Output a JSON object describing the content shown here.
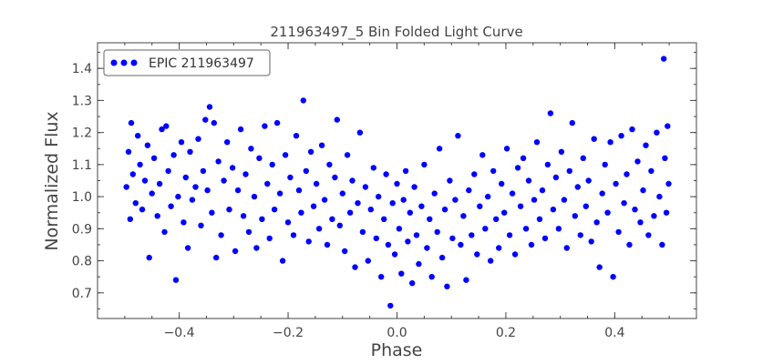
{
  "chart_data": {
    "type": "scatter",
    "title": "211963497_5 Bin Folded Light Curve",
    "xlabel": "Phase",
    "ylabel": "Normalized Flux",
    "xlim": [
      -0.55,
      0.55
    ],
    "ylim": [
      0.62,
      1.48
    ],
    "x_ticks": [
      -0.4,
      -0.2,
      0.0,
      0.2,
      0.4
    ],
    "x_tick_labels": [
      "−0.4",
      "−0.2",
      "0.0",
      "0.2",
      "0.4"
    ],
    "y_ticks": [
      0.7,
      0.8,
      0.9,
      1.0,
      1.1,
      1.2,
      1.3,
      1.4
    ],
    "y_tick_labels": [
      "0.7",
      "0.8",
      "0.9",
      "1.0",
      "1.1",
      "1.2",
      "1.3",
      "1.4"
    ],
    "grid": false,
    "legend": {
      "position": "top-left",
      "entries": [
        "EPIC 211963497"
      ]
    },
    "colors": {
      "series": "#0000ff",
      "axes": "#444444",
      "text": "#444444"
    },
    "series": [
      {
        "name": "EPIC 211963497",
        "marker": "circle",
        "points": [
          [
            -0.497,
            1.03
          ],
          [
            -0.493,
            1.14
          ],
          [
            -0.49,
            0.93
          ],
          [
            -0.488,
            1.23
          ],
          [
            -0.485,
            1.07
          ],
          [
            -0.48,
            0.98
          ],
          [
            -0.476,
            1.19
          ],
          [
            -0.472,
            1.1
          ],
          [
            -0.468,
            0.96
          ],
          [
            -0.463,
            1.05
          ],
          [
            -0.458,
            1.16
          ],
          [
            -0.455,
            0.81
          ],
          [
            -0.45,
            1.01
          ],
          [
            -0.446,
            1.12
          ],
          [
            -0.44,
            0.94
          ],
          [
            -0.436,
            1.04
          ],
          [
            -0.432,
            1.21
          ],
          [
            -0.427,
            0.89
          ],
          [
            -0.424,
            1.22
          ],
          [
            -0.42,
            1.08
          ],
          [
            -0.415,
            0.97
          ],
          [
            -0.41,
            1.13
          ],
          [
            -0.406,
            0.74
          ],
          [
            -0.402,
            1.0
          ],
          [
            -0.396,
            1.17
          ],
          [
            -0.392,
            0.92
          ],
          [
            -0.388,
            1.06
          ],
          [
            -0.384,
            0.84
          ],
          [
            -0.38,
            1.14
          ],
          [
            -0.376,
            0.99
          ],
          [
            -0.37,
            1.03
          ],
          [
            -0.365,
            1.18
          ],
          [
            -0.36,
            0.91
          ],
          [
            -0.356,
            1.08
          ],
          [
            -0.352,
            1.24
          ],
          [
            -0.348,
            1.02
          ],
          [
            -0.344,
            1.28
          ],
          [
            -0.34,
            0.95
          ],
          [
            -0.336,
            1.23
          ],
          [
            -0.332,
            0.81
          ],
          [
            -0.328,
            1.11
          ],
          [
            -0.323,
            0.88
          ],
          [
            -0.318,
            1.05
          ],
          [
            -0.312,
            1.17
          ],
          [
            -0.308,
            0.96
          ],
          [
            -0.302,
            1.09
          ],
          [
            -0.297,
            0.83
          ],
          [
            -0.292,
            1.02
          ],
          [
            -0.287,
            1.21
          ],
          [
            -0.282,
            0.94
          ],
          [
            -0.278,
            1.07
          ],
          [
            -0.272,
            0.89
          ],
          [
            -0.268,
            1.15
          ],
          [
            -0.262,
            1.0
          ],
          [
            -0.258,
            0.84
          ],
          [
            -0.253,
            1.12
          ],
          [
            -0.248,
            0.93
          ],
          [
            -0.243,
            1.22
          ],
          [
            -0.238,
            1.04
          ],
          [
            -0.234,
            0.87
          ],
          [
            -0.229,
            1.1
          ],
          [
            -0.225,
            0.96
          ],
          [
            -0.22,
            1.23
          ],
          [
            -0.215,
            1.01
          ],
          [
            -0.21,
            0.8
          ],
          [
            -0.205,
            1.13
          ],
          [
            -0.2,
            0.92
          ],
          [
            -0.196,
            1.06
          ],
          [
            -0.19,
            0.88
          ],
          [
            -0.185,
            1.19
          ],
          [
            -0.18,
            1.02
          ],
          [
            -0.176,
            0.95
          ],
          [
            -0.172,
            1.3
          ],
          [
            -0.167,
            1.08
          ],
          [
            -0.162,
            0.86
          ],
          [
            -0.158,
            1.14
          ],
          [
            -0.153,
            0.97
          ],
          [
            -0.148,
            1.04
          ],
          [
            -0.143,
            0.9
          ],
          [
            -0.138,
            1.16
          ],
          [
            -0.133,
            0.99
          ],
          [
            -0.128,
            0.85
          ],
          [
            -0.124,
            1.1
          ],
          [
            -0.119,
            0.93
          ],
          [
            -0.114,
            1.06
          ],
          [
            -0.11,
            1.24
          ],
          [
            -0.105,
            0.91
          ],
          [
            -0.1,
            1.01
          ],
          [
            -0.096,
            0.83
          ],
          [
            -0.091,
            1.13
          ],
          [
            -0.086,
            0.95
          ],
          [
            -0.082,
            1.05
          ],
          [
            -0.077,
            0.78
          ],
          [
            -0.072,
            0.98
          ],
          [
            -0.068,
            1.2
          ],
          [
            -0.063,
            0.89
          ],
          [
            -0.058,
            1.03
          ],
          [
            -0.053,
            0.8
          ],
          [
            -0.048,
            0.96
          ],
          [
            -0.043,
            1.09
          ],
          [
            -0.038,
            0.87
          ],
          [
            -0.034,
            1.0
          ],
          [
            -0.029,
            0.75
          ],
          [
            -0.024,
            0.93
          ],
          [
            -0.02,
            1.07
          ],
          [
            -0.016,
            0.85
          ],
          [
            -0.012,
            0.66
          ],
          [
            -0.008,
            0.98
          ],
          [
            -0.004,
            0.82
          ],
          [
            0.0,
            1.04
          ],
          [
            0.004,
            0.9
          ],
          [
            0.008,
            0.76
          ],
          [
            0.012,
            0.99
          ],
          [
            0.016,
            1.08
          ],
          [
            0.02,
            0.86
          ],
          [
            0.024,
            0.95
          ],
          [
            0.028,
            0.73
          ],
          [
            0.032,
            1.03
          ],
          [
            0.036,
            0.88
          ],
          [
            0.04,
            0.79
          ],
          [
            0.045,
            0.97
          ],
          [
            0.05,
            1.1
          ],
          [
            0.055,
            0.84
          ],
          [
            0.06,
            0.93
          ],
          [
            0.064,
            0.75
          ],
          [
            0.069,
            1.01
          ],
          [
            0.074,
            0.89
          ],
          [
            0.078,
            1.15
          ],
          [
            0.083,
            0.81
          ],
          [
            0.088,
            0.96
          ],
          [
            0.092,
            0.72
          ],
          [
            0.097,
            1.05
          ],
          [
            0.102,
            0.87
          ],
          [
            0.107,
            0.99
          ],
          [
            0.112,
            1.19
          ],
          [
            0.117,
            0.85
          ],
          [
            0.122,
            0.94
          ],
          [
            0.127,
            0.74
          ],
          [
            0.132,
            1.02
          ],
          [
            0.137,
            0.88
          ],
          [
            0.142,
            1.07
          ],
          [
            0.147,
            0.82
          ],
          [
            0.152,
            0.97
          ],
          [
            0.157,
            1.13
          ],
          [
            0.162,
            0.9
          ],
          [
            0.167,
            1.0
          ],
          [
            0.172,
            0.8
          ],
          [
            0.177,
            1.08
          ],
          [
            0.182,
            0.93
          ],
          [
            0.187,
            0.84
          ],
          [
            0.192,
            1.04
          ],
          [
            0.197,
            0.95
          ],
          [
            0.202,
            1.15
          ],
          [
            0.207,
            0.88
          ],
          [
            0.212,
            1.01
          ],
          [
            0.217,
            0.82
          ],
          [
            0.222,
            1.09
          ],
          [
            0.227,
            0.97
          ],
          [
            0.232,
            1.12
          ],
          [
            0.237,
            0.9
          ],
          [
            0.242,
            1.05
          ],
          [
            0.247,
            0.85
          ],
          [
            0.252,
            0.99
          ],
          [
            0.257,
            1.17
          ],
          [
            0.262,
            0.93
          ],
          [
            0.267,
            1.02
          ],
          [
            0.272,
            0.87
          ],
          [
            0.277,
            1.1
          ],
          [
            0.282,
            1.26
          ],
          [
            0.287,
            0.96
          ],
          [
            0.292,
            1.06
          ],
          [
            0.297,
            0.9
          ],
          [
            0.302,
            1.14
          ],
          [
            0.307,
            0.99
          ],
          [
            0.312,
            0.84
          ],
          [
            0.317,
            1.08
          ],
          [
            0.322,
            1.23
          ],
          [
            0.327,
            0.94
          ],
          [
            0.332,
            1.03
          ],
          [
            0.337,
            0.88
          ],
          [
            0.342,
            1.12
          ],
          [
            0.347,
            0.97
          ],
          [
            0.352,
            1.05
          ],
          [
            0.357,
            0.86
          ],
          [
            0.362,
            1.18
          ],
          [
            0.367,
            0.92
          ],
          [
            0.372,
            0.78
          ],
          [
            0.377,
            1.01
          ],
          [
            0.382,
            1.1
          ],
          [
            0.387,
            0.95
          ],
          [
            0.392,
            1.17
          ],
          [
            0.397,
            0.75
          ],
          [
            0.402,
            1.04
          ],
          [
            0.407,
            0.89
          ],
          [
            0.412,
            1.19
          ],
          [
            0.417,
            0.98
          ],
          [
            0.422,
            1.07
          ],
          [
            0.427,
            0.85
          ],
          [
            0.432,
            1.21
          ],
          [
            0.437,
            0.96
          ],
          [
            0.442,
            1.11
          ],
          [
            0.447,
            0.92
          ],
          [
            0.452,
            1.02
          ],
          [
            0.457,
            1.16
          ],
          [
            0.462,
            0.88
          ],
          [
            0.467,
            1.08
          ],
          [
            0.472,
            0.94
          ],
          [
            0.477,
            1.2
          ],
          [
            0.482,
            1.0
          ],
          [
            0.487,
            0.85
          ],
          [
            0.49,
            1.43
          ],
          [
            0.492,
            1.12
          ],
          [
            0.495,
            0.95
          ],
          [
            0.497,
            1.22
          ],
          [
            0.499,
            1.04
          ]
        ]
      }
    ]
  }
}
